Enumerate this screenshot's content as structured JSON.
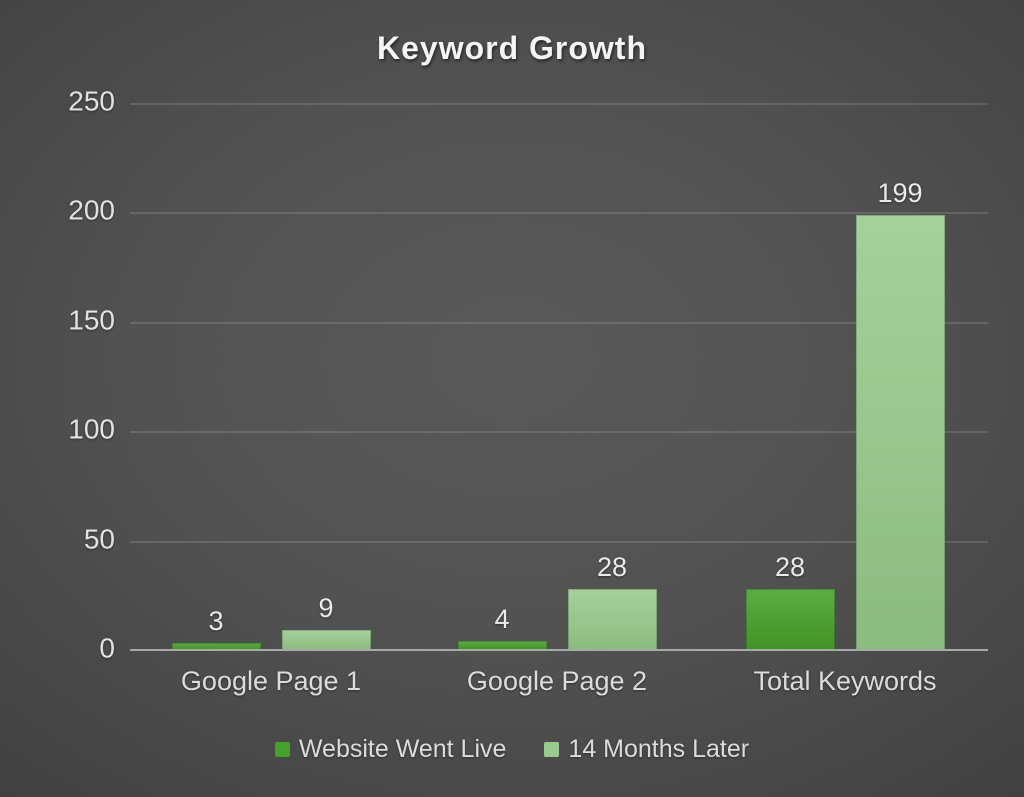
{
  "title": "Keyword Growth",
  "chart_data": {
    "type": "bar",
    "title": "Keyword Growth",
    "categories": [
      "Google Page 1",
      "Google Page 2",
      "Total Keywords"
    ],
    "series": [
      {
        "name": "Website Went Live",
        "values": [
          3,
          4,
          28
        ],
        "color": "#46a029"
      },
      {
        "name": "14 Months Later",
        "values": [
          9,
          28,
          199
        ],
        "color": "#98cb8c"
      }
    ],
    "ylim": [
      0,
      250
    ],
    "yticks": [
      0,
      50,
      100,
      150,
      200,
      250
    ],
    "grid": "horizontal",
    "legend_position": "bottom",
    "data_labels": true,
    "axis_color": "#a9a9a9",
    "grid_color": "#5e5e5e",
    "text_color": "#e2e2e2"
  }
}
